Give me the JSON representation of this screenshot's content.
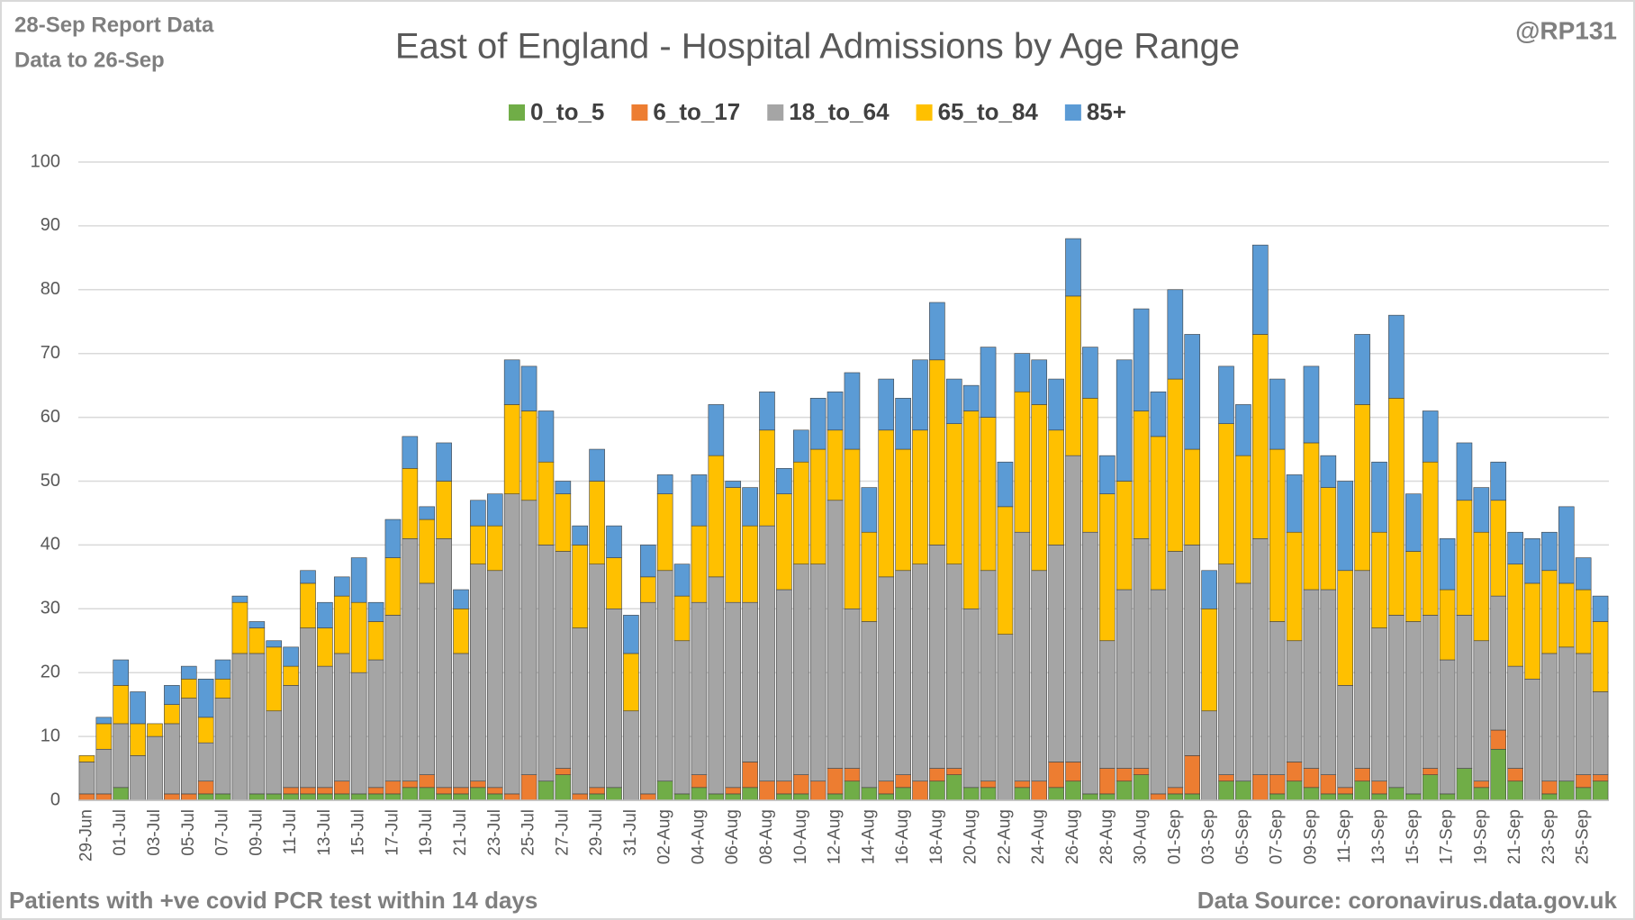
{
  "chart_data": {
    "type": "stacked_bar",
    "title": "East of England - Hospital Admissions by Age Range",
    "report_note": "28-Sep Report Data",
    "data_note": "Data to 26-Sep",
    "author": "@RP131",
    "footnote": "Patients with  +ve covid PCR test within 14 days",
    "source": "Data Source: coronavirus.data.gov.uk",
    "categories": [
      "29-Jun",
      null,
      "01-Jul",
      null,
      "03-Jul",
      null,
      "05-Jul",
      null,
      "07-Jul",
      null,
      "09-Jul",
      null,
      "11-Jul",
      null,
      "13-Jul",
      null,
      "15-Jul",
      null,
      "17-Jul",
      null,
      "19-Jul",
      null,
      "21-Jul",
      null,
      "23-Jul",
      null,
      "25-Jul",
      null,
      "27-Jul",
      null,
      "29-Jul",
      null,
      "31-Jul",
      null,
      "02-Aug",
      null,
      "04-Aug",
      null,
      "06-Aug",
      null,
      "08-Aug",
      null,
      "10-Aug",
      null,
      "12-Aug",
      null,
      "14-Aug",
      null,
      "16-Aug",
      null,
      "18-Aug",
      null,
      "20-Aug",
      null,
      "22-Aug",
      null,
      "24-Aug",
      null,
      "26-Aug",
      null,
      "28-Aug",
      null,
      "30-Aug",
      null,
      "01-Sep",
      null,
      "03-Sep",
      null,
      "05-Sep",
      null,
      "07-Sep",
      null,
      "09-Sep",
      null,
      "11-Sep",
      null,
      "13-Sep",
      null,
      "15-Sep",
      null,
      "17-Sep",
      null,
      "19-Sep",
      null,
      "21-Sep",
      null,
      "23-Sep",
      null,
      "25-Sep",
      null
    ],
    "series": [
      {
        "name": "0_to_5",
        "color": "#70ad47",
        "values": [
          0,
          0,
          2,
          0,
          0,
          0,
          0,
          1,
          1,
          0,
          1,
          1,
          1,
          1,
          1,
          1,
          1,
          1,
          1,
          2,
          2,
          1,
          1,
          2,
          1,
          0,
          0,
          3,
          4,
          0,
          1,
          2,
          0,
          0,
          3,
          1,
          2,
          1,
          1,
          2,
          0,
          1,
          1,
          0,
          1,
          3,
          2,
          1,
          2,
          0,
          3,
          4,
          2,
          2,
          0,
          2,
          0,
          2,
          3,
          1,
          1,
          3,
          4,
          0,
          1,
          1,
          0,
          3,
          3,
          0,
          1,
          3,
          2,
          1,
          1,
          3,
          1,
          2,
          1,
          4,
          1,
          5,
          2,
          8,
          3,
          0,
          1,
          3,
          2,
          3
        ]
      },
      {
        "name": "6_to_17",
        "color": "#ed7d31",
        "values": [
          1,
          1,
          0,
          0,
          0,
          1,
          1,
          2,
          0,
          0,
          0,
          0,
          1,
          1,
          1,
          2,
          0,
          1,
          2,
          1,
          2,
          1,
          1,
          1,
          1,
          1,
          4,
          0,
          1,
          1,
          1,
          0,
          0,
          1,
          0,
          0,
          2,
          0,
          1,
          4,
          3,
          2,
          3,
          3,
          4,
          2,
          0,
          2,
          2,
          3,
          2,
          1,
          0,
          1,
          0,
          1,
          3,
          4,
          3,
          0,
          4,
          2,
          1,
          1,
          1,
          6,
          0,
          1,
          0,
          4,
          3,
          3,
          3,
          3,
          1,
          2,
          2,
          0,
          0,
          1,
          0,
          0,
          1,
          3,
          2,
          0,
          2,
          0,
          2,
          1
        ]
      },
      {
        "name": "18_to_64",
        "color": "#a5a5a5",
        "values": [
          5,
          7,
          10,
          7,
          10,
          11,
          15,
          6,
          15,
          23,
          22,
          13,
          16,
          25,
          19,
          20,
          19,
          20,
          26,
          38,
          30,
          39,
          21,
          34,
          34,
          47,
          43,
          37,
          34,
          26,
          35,
          28,
          14,
          30,
          33,
          24,
          27,
          34,
          29,
          25,
          40,
          30,
          33,
          34,
          42,
          25,
          26,
          32,
          32,
          34,
          35,
          32,
          28,
          33,
          26,
          39,
          33,
          34,
          48,
          41,
          20,
          28,
          36,
          32,
          37,
          33,
          14,
          33,
          31,
          37,
          24,
          19,
          28,
          29,
          16,
          31,
          24,
          27,
          27,
          24,
          21,
          24,
          22,
          21,
          16,
          19,
          20,
          21,
          19,
          13
        ]
      },
      {
        "name": "65_to_84",
        "color": "#ffc000",
        "values": [
          1,
          4,
          6,
          5,
          2,
          3,
          3,
          4,
          3,
          8,
          4,
          10,
          3,
          7,
          6,
          9,
          11,
          6,
          9,
          11,
          10,
          9,
          7,
          6,
          7,
          14,
          14,
          13,
          9,
          13,
          13,
          8,
          9,
          4,
          12,
          7,
          12,
          19,
          18,
          12,
          15,
          15,
          16,
          18,
          11,
          25,
          14,
          23,
          19,
          21,
          29,
          22,
          31,
          24,
          20,
          22,
          26,
          18,
          25,
          21,
          23,
          17,
          20,
          24,
          27,
          15,
          16,
          22,
          20,
          32,
          27,
          17,
          23,
          16,
          18,
          26,
          15,
          34,
          11,
          24,
          11,
          18,
          17,
          15,
          16,
          15,
          13,
          10,
          10,
          11
        ]
      },
      {
        "name": "85+",
        "color": "#5b9bd5",
        "values": [
          0,
          1,
          4,
          5,
          0,
          3,
          2,
          6,
          3,
          1,
          1,
          1,
          3,
          2,
          4,
          3,
          7,
          3,
          6,
          5,
          2,
          6,
          3,
          4,
          5,
          7,
          7,
          8,
          2,
          3,
          5,
          5,
          6,
          5,
          3,
          5,
          8,
          8,
          1,
          6,
          6,
          4,
          5,
          8,
          6,
          12,
          7,
          8,
          8,
          11,
          9,
          7,
          4,
          11,
          7,
          6,
          7,
          8,
          9,
          8,
          6,
          19,
          16,
          7,
          14,
          18,
          6,
          9,
          8,
          14,
          11,
          9,
          12,
          5,
          14,
          11,
          11,
          13,
          9,
          8,
          8,
          9,
          7,
          6,
          5,
          7,
          6,
          12,
          5,
          4
        ]
      }
    ],
    "ylim": [
      0,
      100
    ],
    "yticks": [
      0,
      10,
      20,
      30,
      40,
      50,
      60,
      70,
      80,
      90,
      100
    ],
    "grid": true,
    "legend": "top"
  }
}
